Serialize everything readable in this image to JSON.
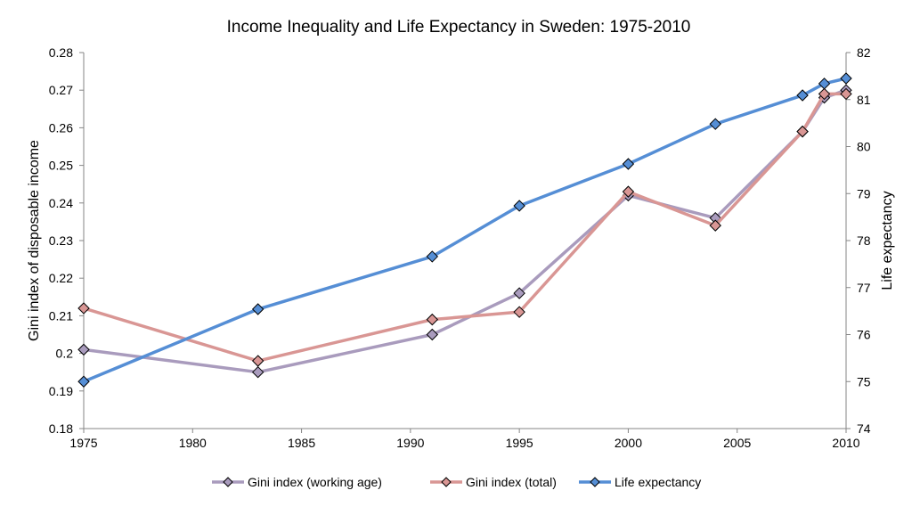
{
  "chart_data": {
    "type": "line",
    "title": "Income Inequality and Life Expectancy in Sweden: 1975-2010",
    "xlabel": "",
    "ylabel": "Gini index of disposable income",
    "y2label": "Life expectancy",
    "xlim": [
      1975,
      2010
    ],
    "ylim": [
      0.18,
      0.28
    ],
    "y2lim": [
      74,
      82
    ],
    "x_ticks": [
      "1975",
      "1980",
      "1985",
      "1990",
      "1995",
      "2000",
      "2005",
      "2010"
    ],
    "y_ticks": [
      "0.18",
      "0.19",
      "0.2",
      "0.21",
      "0.22",
      "0.23",
      "0.24",
      "0.25",
      "0.26",
      "0.27",
      "0.28"
    ],
    "y2_ticks": [
      "74",
      "75",
      "76",
      "77",
      "78",
      "79",
      "80",
      "81",
      "82"
    ],
    "grid": false,
    "legend_position": "bottom",
    "series": [
      {
        "name": "Gini index (working age)",
        "axis": "left",
        "color": "#A99BBD",
        "marker_color": "#A99BBD",
        "x": [
          1975,
          1983,
          1991,
          1995,
          2000,
          2004,
          2008,
          2009,
          2010
        ],
        "y": [
          0.201,
          0.195,
          0.205,
          0.216,
          0.242,
          0.236,
          0.259,
          0.268,
          0.27
        ]
      },
      {
        "name": "Gini index (total)",
        "axis": "left",
        "color": "#D99694",
        "marker_color": "#D99694",
        "x": [
          1975,
          1983,
          1991,
          1995,
          2000,
          2004,
          2008,
          2009,
          2010
        ],
        "y": [
          0.212,
          0.198,
          0.209,
          0.211,
          0.243,
          0.234,
          0.259,
          0.269,
          0.269
        ]
      },
      {
        "name": "Life expectancy",
        "axis": "right",
        "color": "#558ED5",
        "marker_color": "#558ED5",
        "x": [
          1975,
          1983,
          1991,
          1995,
          2000,
          2004,
          2008,
          2009,
          2010
        ],
        "y": [
          75.0,
          76.54,
          77.66,
          78.74,
          79.63,
          80.48,
          81.09,
          81.34,
          81.45
        ]
      }
    ]
  }
}
